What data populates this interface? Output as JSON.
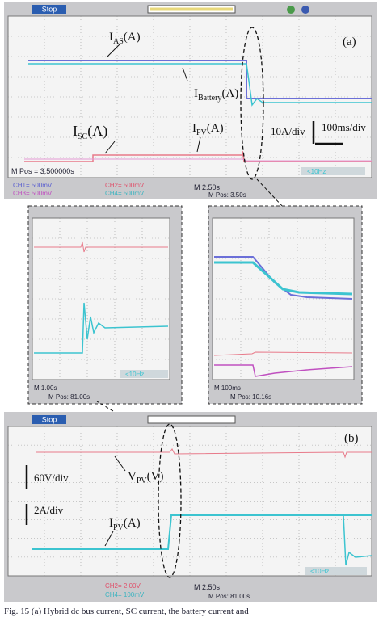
{
  "panel_a": {
    "status": "Stop",
    "label": "(a)",
    "mpos_screen": "M Pos = 3.500000s",
    "channels": [
      "CH1= 500mV",
      "CH2= 500mV",
      "CH3= 500mV",
      "CH4= 500mV"
    ],
    "timebase": "M 2.50s",
    "mpos": "M Pos: 3.50s",
    "filter": "<10Hz",
    "signals": [
      {
        "main": "I",
        "sub": "AS",
        "unit": "(A)"
      },
      {
        "main": "I",
        "sub": "Battery",
        "unit": "(A)"
      },
      {
        "main": "I",
        "sub": "SC",
        "unit": "(A)"
      },
      {
        "main": "I",
        "sub": "PV",
        "unit": "(A)"
      }
    ],
    "scale_current": "10A/div",
    "scale_time": "100ms/div"
  },
  "zoom_left": {
    "filter": "<10Hz",
    "timebase": "M 1.00s",
    "mpos": "M Pos: 81.00s"
  },
  "zoom_right": {
    "timebase": "M 100ms",
    "mpos": "M Pos: 10.16s"
  },
  "panel_b": {
    "status": "Stop",
    "label": "(b)",
    "signals": [
      {
        "main": "V",
        "sub": "PV",
        "unit": "(V)"
      },
      {
        "main": "I",
        "sub": "PV",
        "unit": "(A)"
      }
    ],
    "scale_voltage": "60V/div",
    "scale_current": "2A/div",
    "channels": [
      "CH2= 2.00V",
      "CH4= 100mV"
    ],
    "timebase": "M 2.50s",
    "mpos": "M Pos: 81.00s",
    "filter": "<10Hz"
  },
  "caption": "Fig. 15 (a) Hybrid dc bus current, SC current, the battery current and"
}
